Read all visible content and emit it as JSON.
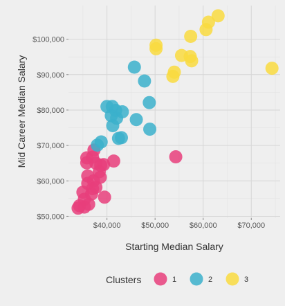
{
  "chart_data": {
    "type": "scatter",
    "title": "",
    "xlabel": "Starting Median Salary",
    "ylabel": "Mid Career Median Salary",
    "xlim": [
      32000,
      76000
    ],
    "ylim": [
      49500,
      109500
    ],
    "x_ticks": [
      40000,
      50000,
      60000,
      70000
    ],
    "x_tick_labels": [
      "$40,000",
      "$50,000",
      "$60,000",
      "$70,000"
    ],
    "y_ticks": [
      50000,
      60000,
      70000,
      80000,
      90000,
      100000
    ],
    "y_tick_labels": [
      "$50,000",
      "$60,000",
      "$70,000",
      "$80,000",
      "$90,000",
      "$100,000"
    ],
    "grid": true,
    "legend": {
      "title": "Clusters",
      "position": "bottom",
      "items": [
        {
          "label": "1",
          "color": "#E83E7B"
        },
        {
          "label": "2",
          "color": "#3BB0CB"
        },
        {
          "label": "3",
          "color": "#F9DB3F"
        }
      ]
    },
    "series": [
      {
        "name": "1",
        "color": "#E83E7B",
        "points": [
          [
            34000,
            52300
          ],
          [
            34300,
            53000
          ],
          [
            35300,
            52600
          ],
          [
            36200,
            53400
          ],
          [
            35300,
            54800
          ],
          [
            36800,
            56300
          ],
          [
            37700,
            58200
          ],
          [
            35000,
            56800
          ],
          [
            36000,
            59300
          ],
          [
            37200,
            60000
          ],
          [
            38600,
            61000
          ],
          [
            38400,
            62600
          ],
          [
            38700,
            64400
          ],
          [
            37700,
            65000
          ],
          [
            35800,
            66500
          ],
          [
            35800,
            65100
          ],
          [
            37000,
            66700
          ],
          [
            37300,
            68700
          ],
          [
            39500,
            55400
          ],
          [
            41400,
            65600
          ],
          [
            36000,
            61400
          ],
          [
            37000,
            57800
          ],
          [
            54300,
            66800
          ],
          [
            39300,
            64600
          ]
        ]
      },
      {
        "name": "2",
        "color": "#3BB0CB",
        "points": [
          [
            38000,
            70100
          ],
          [
            38800,
            71000
          ],
          [
            42400,
            72000
          ],
          [
            43000,
            72200
          ],
          [
            41200,
            75600
          ],
          [
            40900,
            78400
          ],
          [
            40000,
            81000
          ],
          [
            41100,
            81000
          ],
          [
            41800,
            79900
          ],
          [
            43200,
            79500
          ],
          [
            42000,
            77700
          ],
          [
            46100,
            77300
          ],
          [
            48900,
            74600
          ],
          [
            48800,
            82100
          ],
          [
            47800,
            88200
          ],
          [
            45700,
            92100
          ]
        ]
      },
      {
        "name": "3",
        "color": "#F9DB3F",
        "points": [
          [
            53700,
            89500
          ],
          [
            54000,
            90700
          ],
          [
            50200,
            97300
          ],
          [
            50200,
            98300
          ],
          [
            55500,
            95400
          ],
          [
            57300,
            95100
          ],
          [
            57600,
            93900
          ],
          [
            57400,
            100800
          ],
          [
            60600,
            102700
          ],
          [
            61100,
            104800
          ],
          [
            63100,
            106600
          ],
          [
            74300,
            91800
          ]
        ]
      }
    ]
  }
}
